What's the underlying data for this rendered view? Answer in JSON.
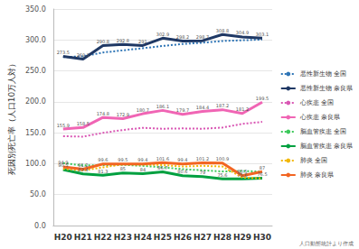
{
  "chart_data": {
    "type": "line",
    "y_label": "死因別死亡率（人口10万人対）",
    "annotations": [
      "人口動態統計より作成"
    ],
    "categories": [
      "H20",
      "H21",
      "H22",
      "H23",
      "H24",
      "H25",
      "H26",
      "H27",
      "H28",
      "H29",
      "H30"
    ],
    "series": [
      {
        "name": "悪性新生物 全国",
        "color": "#2e75b6",
        "line_style": "dotted",
        "marker": "none",
        "data_labels": false,
        "values": [
          272.3,
          273.5,
          279.7,
          283.2,
          286.6,
          290.3,
          293.5,
          295.5,
          298.3,
          299.5,
          300.7
        ]
      },
      {
        "name": "悪性新生物 奈良県",
        "color": "#1f3864",
        "line_style": "solid",
        "marker": "none",
        "data_labels": true,
        "values": [
          273.5,
          269.1,
          290.8,
          292.8,
          291,
          302.9,
          298.2,
          298.7,
          308.8,
          304.9,
          303.1
        ]
      },
      {
        "name": "心疾患 全国",
        "color": "#d957b4",
        "line_style": "dotted",
        "marker": "none",
        "data_labels": false,
        "values": [
          144.4,
          143.7,
          149.8,
          154.5,
          157.9,
          156.5,
          157.0,
          156.5,
          158.4,
          164.3,
          167.6
        ]
      },
      {
        "name": "心疾患 奈良県",
        "color": "#f065b4",
        "line_style": "solid",
        "marker": "none",
        "data_labels": true,
        "values": [
          155.9,
          158.5,
          174.8,
          172.9,
          180.7,
          186.1,
          179.7,
          184.4,
          187.2,
          181.2,
          199.5
        ]
      },
      {
        "name": "脳血管疾患 全国",
        "color": "#3cc85a",
        "line_style": "dotted",
        "marker": "none",
        "data_labels": false,
        "values": [
          100.9,
          97.2,
          97.7,
          98.2,
          96.5,
          94.1,
          91.1,
          89.4,
          87.4,
          88.2,
          87.1
        ]
      },
      {
        "name": "脳血管疾患 奈良県",
        "color": "#00a040",
        "line_style": "solid",
        "marker": "none",
        "data_labels": true,
        "values": [
          90.5,
          83.4,
          81.3,
          85,
          84,
          86.7,
          80.6,
          79,
          75.6,
          75.6,
          76.5
        ]
      },
      {
        "name": "肺炎 全国",
        "color": "#f2b705",
        "line_style": "dotted",
        "marker": "none",
        "data_labels": false,
        "values": [
          91.6,
          89.0,
          94.1,
          98.9,
          98.4,
          97.8,
          95.4,
          96.5,
          95.4,
          77.7,
          76.2
        ]
      },
      {
        "name": "肺炎 奈良県",
        "color": "#f26522",
        "line_style": "solid",
        "marker": "none",
        "data_labels": true,
        "values": [
          94.9,
          91.2,
          99.6,
          99.5,
          99.4,
          101.6,
          99.4,
          101.2,
          100.9,
          80.5,
          87
        ]
      }
    ],
    "ylim": [
      0,
      350
    ],
    "yticks": [
      {
        "value": 0,
        "label": "0.0"
      },
      {
        "value": 50,
        "label": "50.0"
      },
      {
        "value": 100,
        "label": "100.0"
      },
      {
        "value": 150,
        "label": "150.0"
      },
      {
        "value": 200,
        "label": "200.0"
      },
      {
        "value": 250,
        "label": "250.0"
      },
      {
        "value": 300,
        "label": "300.0"
      },
      {
        "value": 350,
        "label": "350.0"
      }
    ],
    "grid": true,
    "legend": "right"
  }
}
